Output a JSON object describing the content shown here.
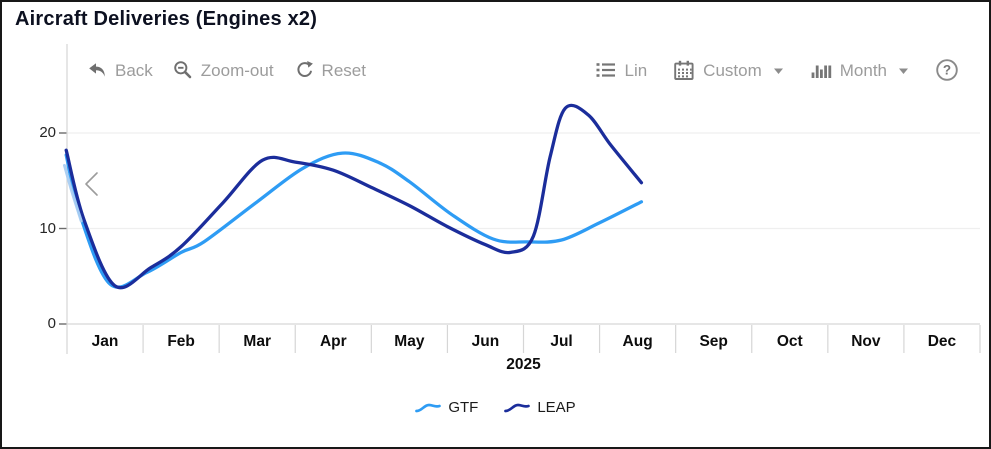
{
  "toolbar": {
    "back_label": "Back",
    "zoom_out_label": "Zoom-out",
    "reset_label": "Reset",
    "lin_label": "Lin",
    "custom_label": "Custom",
    "month_label": "Month",
    "help_label": "?"
  },
  "icons": {
    "back": "undo-arrow",
    "zoom_out": "magnifier-minus",
    "reset": "refresh-circular-arrow",
    "lin": "list-bullets",
    "custom": "calendar",
    "month": "bar-chart",
    "help": "question-circle",
    "pan_left": "chevron-left"
  },
  "chart_data": {
    "type": "line",
    "title": "Aircraft Deliveries (Engines x2)",
    "xlabel": "2025",
    "x_categories": [
      "Jan",
      "Feb",
      "Mar",
      "Apr",
      "May",
      "Jun",
      "Jul",
      "Aug",
      "Sep",
      "Oct",
      "Nov",
      "Dec"
    ],
    "y_ticks": [
      0,
      10,
      20
    ],
    "ylim": [
      0,
      24
    ],
    "grid": true,
    "legend_position": "bottom",
    "series": [
      {
        "name": "GTF",
        "color": "#2e9cf4",
        "monthly_values": {
          "Jan": 4,
          "Feb": 7.5,
          "Mar": 13,
          "Apr": 18,
          "May": 15,
          "Jun": 9,
          "Jul": 9,
          "Aug": 13
        },
        "curve_points": [
          [
            0.49,
            17.7
          ],
          [
            0.68,
            11.2
          ],
          [
            1.07,
            4.15
          ],
          [
            1.55,
            5.4
          ],
          [
            2.0,
            7.5
          ],
          [
            2.3,
            8.6
          ],
          [
            3.0,
            12.8
          ],
          [
            3.6,
            16.3
          ],
          [
            4.12,
            17.9
          ],
          [
            4.6,
            16.9
          ],
          [
            5.0,
            14.9
          ],
          [
            5.55,
            11.5
          ],
          [
            6.1,
            8.9
          ],
          [
            6.55,
            8.6
          ],
          [
            7.0,
            8.8
          ],
          [
            7.5,
            10.6
          ],
          [
            8.05,
            12.8
          ]
        ]
      },
      {
        "name": "LEAP",
        "color": "#1b2d9b",
        "monthly_values": {
          "Jan": 4,
          "Feb": 8,
          "Mar": 17,
          "Apr": 16,
          "May": 12.5,
          "Jun": 7.5,
          "Jul": 23,
          "Aug": 15
        },
        "curve_points": [
          [
            0.49,
            18.2
          ],
          [
            0.72,
            11.0
          ],
          [
            1.13,
            4.0
          ],
          [
            1.6,
            5.9
          ],
          [
            2.0,
            8.1
          ],
          [
            2.55,
            12.7
          ],
          [
            3.07,
            17.15
          ],
          [
            3.5,
            16.95
          ],
          [
            4.0,
            16.1
          ],
          [
            4.5,
            14.3
          ],
          [
            5.0,
            12.4
          ],
          [
            5.5,
            10.2
          ],
          [
            6.0,
            8.3
          ],
          [
            6.33,
            7.5
          ],
          [
            6.63,
            9.2
          ],
          [
            6.85,
            17.5
          ],
          [
            7.05,
            22.6
          ],
          [
            7.35,
            21.9
          ],
          [
            7.65,
            18.7
          ],
          [
            8.05,
            14.8
          ]
        ]
      }
    ],
    "style": {
      "grid_color": "#efefef",
      "axis_color": "#d6d6d6",
      "tick_color": "#6b6b6b",
      "fade_overlay_color": "#a9cdf2",
      "fade_overlay_points": [
        [
          0.5,
          16.6
        ],
        [
          0.6,
          13.8
        ],
        [
          0.72,
          10.8
        ]
      ]
    }
  }
}
